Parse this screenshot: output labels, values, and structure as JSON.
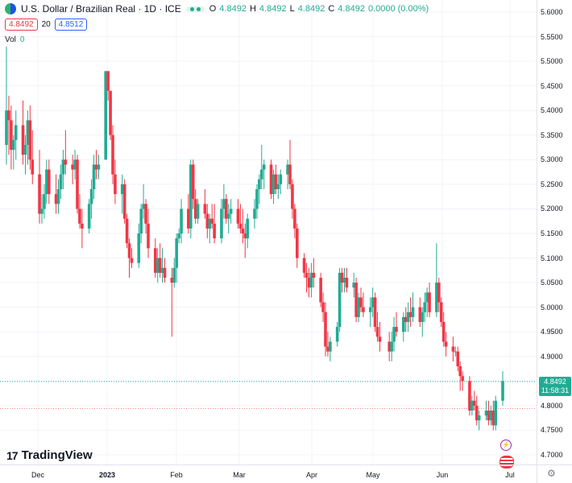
{
  "header": {
    "title": "U.S. Dollar / Brazilian Real · 1D · ICE",
    "ohlc": [
      {
        "key": "O",
        "value": "4.8492"
      },
      {
        "key": "H",
        "value": "4.8492"
      },
      {
        "key": "L",
        "value": "4.8492"
      },
      {
        "key": "C",
        "value": "4.8492"
      },
      {
        "key": "",
        "value": "0.0000 (0.00%)"
      }
    ]
  },
  "quote": {
    "bid": "4.8492",
    "spread": "20",
    "ask": "4.8512"
  },
  "volume": {
    "label": "Vol",
    "value": "0"
  },
  "price_axis": {
    "ticks": [
      "5.6000",
      "5.5500",
      "5.5000",
      "5.4500",
      "5.4000",
      "5.3500",
      "5.3000",
      "5.2500",
      "5.2000",
      "5.1500",
      "5.1000",
      "5.0500",
      "5.0000",
      "4.9500",
      "4.9000",
      "4.8500",
      "4.8000",
      "4.7500",
      "4.7000"
    ],
    "last_price": "4.8492",
    "countdown": "11:58:31"
  },
  "time_axis": {
    "ticks": [
      {
        "label": "Dec",
        "bold": false
      },
      {
        "label": "2023",
        "bold": true
      },
      {
        "label": "Feb",
        "bold": false
      },
      {
        "label": "Mar",
        "bold": false
      },
      {
        "label": "Apr",
        "bold": false
      },
      {
        "label": "May",
        "bold": false
      },
      {
        "label": "Jun",
        "bold": false
      },
      {
        "label": "Jul",
        "bold": false
      }
    ]
  },
  "logo": {
    "text": "TradingView"
  },
  "colors": {
    "up": "#22ab94",
    "down": "#f23645",
    "grid": "#f0f3fa",
    "last_line": "#22ab94",
    "bid_line": "#f23645"
  },
  "chart_data": {
    "type": "candlestick",
    "ylim": [
      4.69,
      5.61
    ],
    "candles": [
      {
        "d": "2022-11-21",
        "o": 5.33,
        "h": 5.53,
        "l": 5.29,
        "c": 5.4
      },
      {
        "d": "2022-11-22",
        "o": 5.4,
        "h": 5.43,
        "l": 5.31,
        "c": 5.38
      },
      {
        "d": "2022-11-23",
        "o": 5.38,
        "h": 5.41,
        "l": 5.28,
        "c": 5.32
      },
      {
        "d": "2022-11-24",
        "o": 5.32,
        "h": 5.35,
        "l": 5.28,
        "c": 5.34
      },
      {
        "d": "2022-11-25",
        "o": 5.34,
        "h": 5.4,
        "l": 5.3,
        "c": 5.37
      },
      {
        "d": "2022-11-28",
        "o": 5.37,
        "h": 5.42,
        "l": 5.29,
        "c": 5.31
      },
      {
        "d": "2022-11-29",
        "o": 5.31,
        "h": 5.35,
        "l": 5.27,
        "c": 5.33
      },
      {
        "d": "2022-11-30",
        "o": 5.33,
        "h": 5.4,
        "l": 5.29,
        "c": 5.38
      },
      {
        "d": "2022-12-01",
        "o": 5.38,
        "h": 5.41,
        "l": 5.28,
        "c": 5.3
      },
      {
        "d": "2022-12-02",
        "o": 5.3,
        "h": 5.36,
        "l": 5.25,
        "c": 5.27
      },
      {
        "d": "2022-12-05",
        "o": 5.27,
        "h": 5.32,
        "l": 5.17,
        "c": 5.19
      },
      {
        "d": "2022-12-06",
        "o": 5.19,
        "h": 5.23,
        "l": 5.17,
        "c": 5.2
      },
      {
        "d": "2022-12-07",
        "o": 5.2,
        "h": 5.25,
        "l": 5.18,
        "c": 5.23
      },
      {
        "d": "2022-12-08",
        "o": 5.23,
        "h": 5.3,
        "l": 5.21,
        "c": 5.28
      },
      {
        "d": "2022-12-09",
        "o": 5.28,
        "h": 5.3,
        "l": 5.21,
        "c": 5.23
      },
      {
        "d": "2022-12-12",
        "o": 5.23,
        "h": 5.27,
        "l": 5.19,
        "c": 5.21
      },
      {
        "d": "2022-12-13",
        "o": 5.21,
        "h": 5.26,
        "l": 5.19,
        "c": 5.24
      },
      {
        "d": "2022-12-14",
        "o": 5.24,
        "h": 5.29,
        "l": 5.22,
        "c": 5.27
      },
      {
        "d": "2022-12-15",
        "o": 5.27,
        "h": 5.32,
        "l": 5.24,
        "c": 5.3
      },
      {
        "d": "2022-12-16",
        "o": 5.3,
        "h": 5.36,
        "l": 5.27,
        "c": 5.29
      },
      {
        "d": "2022-12-19",
        "o": 5.29,
        "h": 5.31,
        "l": 5.25,
        "c": 5.28
      },
      {
        "d": "2022-12-20",
        "o": 5.28,
        "h": 5.32,
        "l": 5.26,
        "c": 5.3
      },
      {
        "d": "2022-12-21",
        "o": 5.3,
        "h": 5.31,
        "l": 5.19,
        "c": 5.2
      },
      {
        "d": "2022-12-22",
        "o": 5.2,
        "h": 5.23,
        "l": 5.16,
        "c": 5.17
      },
      {
        "d": "2022-12-23",
        "o": 5.17,
        "h": 5.2,
        "l": 5.12,
        "c": 5.16
      },
      {
        "d": "2022-12-26",
        "o": 5.16,
        "h": 5.22,
        "l": 5.15,
        "c": 5.21
      },
      {
        "d": "2022-12-27",
        "o": 5.21,
        "h": 5.26,
        "l": 5.18,
        "c": 5.24
      },
      {
        "d": "2022-12-28",
        "o": 5.24,
        "h": 5.31,
        "l": 5.22,
        "c": 5.29
      },
      {
        "d": "2022-12-29",
        "o": 5.29,
        "h": 5.32,
        "l": 5.26,
        "c": 5.28
      },
      {
        "d": "2022-12-30",
        "o": 5.28,
        "h": 5.31,
        "l": 5.26,
        "c": 5.29
      },
      {
        "d": "2023-01-02",
        "o": 5.3,
        "h": 5.48,
        "l": 5.3,
        "c": 5.48
      },
      {
        "d": "2023-01-03",
        "o": 5.48,
        "h": 5.48,
        "l": 5.42,
        "c": 5.44
      },
      {
        "d": "2023-01-04",
        "o": 5.44,
        "h": 5.44,
        "l": 5.34,
        "c": 5.35
      },
      {
        "d": "2023-01-05",
        "o": 5.35,
        "h": 5.37,
        "l": 5.25,
        "c": 5.27
      },
      {
        "d": "2023-01-06",
        "o": 5.27,
        "h": 5.3,
        "l": 5.21,
        "c": 5.23
      },
      {
        "d": "2023-01-09",
        "o": 5.23,
        "h": 5.27,
        "l": 5.19,
        "c": 5.25
      },
      {
        "d": "2023-01-10",
        "o": 5.25,
        "h": 5.26,
        "l": 5.17,
        "c": 5.18
      },
      {
        "d": "2023-01-11",
        "o": 5.18,
        "h": 5.19,
        "l": 5.12,
        "c": 5.13
      },
      {
        "d": "2023-01-12",
        "o": 5.13,
        "h": 5.14,
        "l": 5.06,
        "c": 5.1
      },
      {
        "d": "2023-01-13",
        "o": 5.1,
        "h": 5.12,
        "l": 5.08,
        "c": 5.09
      },
      {
        "d": "2023-01-16",
        "o": 5.09,
        "h": 5.17,
        "l": 5.08,
        "c": 5.15
      },
      {
        "d": "2023-01-17",
        "o": 5.15,
        "h": 5.21,
        "l": 5.13,
        "c": 5.2
      },
      {
        "d": "2023-01-18",
        "o": 5.2,
        "h": 5.25,
        "l": 5.18,
        "c": 5.21
      },
      {
        "d": "2023-01-19",
        "o": 5.21,
        "h": 5.22,
        "l": 5.15,
        "c": 5.17
      },
      {
        "d": "2023-01-20",
        "o": 5.17,
        "h": 5.2,
        "l": 5.1,
        "c": 5.12
      },
      {
        "d": "2023-01-23",
        "o": 5.12,
        "h": 5.14,
        "l": 5.06,
        "c": 5.07
      },
      {
        "d": "2023-01-24",
        "o": 5.07,
        "h": 5.12,
        "l": 5.05,
        "c": 5.1
      },
      {
        "d": "2023-01-25",
        "o": 5.1,
        "h": 5.13,
        "l": 5.06,
        "c": 5.07
      },
      {
        "d": "2023-01-26",
        "o": 5.07,
        "h": 5.12,
        "l": 5.05,
        "c": 5.08
      },
      {
        "d": "2023-01-27",
        "o": 5.08,
        "h": 5.1,
        "l": 5.05,
        "c": 5.06
      },
      {
        "d": "2023-01-30",
        "o": 5.06,
        "h": 5.08,
        "l": 4.94,
        "c": 5.05
      },
      {
        "d": "2023-01-31",
        "o": 5.05,
        "h": 5.1,
        "l": 5.04,
        "c": 5.08
      },
      {
        "d": "2023-02-01",
        "o": 5.08,
        "h": 5.15,
        "l": 5.05,
        "c": 5.14
      },
      {
        "d": "2023-02-02",
        "o": 5.14,
        "h": 5.16,
        "l": 5.13,
        "c": 5.15
      },
      {
        "d": "2023-02-03",
        "o": 5.15,
        "h": 5.22,
        "l": 5.13,
        "c": 5.2
      },
      {
        "d": "2023-02-06",
        "o": 5.2,
        "h": 5.23,
        "l": 5.15,
        "c": 5.16
      },
      {
        "d": "2023-02-07",
        "o": 5.16,
        "h": 5.3,
        "l": 5.14,
        "c": 5.29
      },
      {
        "d": "2023-02-08",
        "o": 5.29,
        "h": 5.3,
        "l": 5.2,
        "c": 5.22
      },
      {
        "d": "2023-02-09",
        "o": 5.22,
        "h": 5.24,
        "l": 5.17,
        "c": 5.18
      },
      {
        "d": "2023-02-10",
        "o": 5.18,
        "h": 5.22,
        "l": 5.17,
        "c": 5.21
      },
      {
        "d": "2023-02-13",
        "o": 5.21,
        "h": 5.24,
        "l": 5.18,
        "c": 5.19
      },
      {
        "d": "2023-02-14",
        "o": 5.19,
        "h": 5.21,
        "l": 5.14,
        "c": 5.16
      },
      {
        "d": "2023-02-15",
        "o": 5.16,
        "h": 5.19,
        "l": 5.13,
        "c": 5.18
      },
      {
        "d": "2023-02-16",
        "o": 5.18,
        "h": 5.21,
        "l": 5.16,
        "c": 5.17
      },
      {
        "d": "2023-02-17",
        "o": 5.17,
        "h": 5.21,
        "l": 5.13,
        "c": 5.14
      },
      {
        "d": "2023-02-20",
        "o": 5.14,
        "h": 5.22,
        "l": 5.13,
        "c": 5.2
      },
      {
        "d": "2023-02-21",
        "o": 5.2,
        "h": 5.25,
        "l": 5.18,
        "c": 5.22
      },
      {
        "d": "2023-02-22",
        "o": 5.22,
        "h": 5.23,
        "l": 5.17,
        "c": 5.18
      },
      {
        "d": "2023-02-23",
        "o": 5.18,
        "h": 5.21,
        "l": 5.15,
        "c": 5.19
      },
      {
        "d": "2023-02-24",
        "o": 5.19,
        "h": 5.22,
        "l": 5.17,
        "c": 5.2
      },
      {
        "d": "2023-02-27",
        "o": 5.2,
        "h": 5.22,
        "l": 5.16,
        "c": 5.17
      },
      {
        "d": "2023-02-28",
        "o": 5.17,
        "h": 5.21,
        "l": 5.15,
        "c": 5.16
      },
      {
        "d": "2023-03-01",
        "o": 5.16,
        "h": 5.2,
        "l": 5.13,
        "c": 5.15
      },
      {
        "d": "2023-03-02",
        "o": 5.15,
        "h": 5.17,
        "l": 5.1,
        "c": 5.14
      },
      {
        "d": "2023-03-03",
        "o": 5.14,
        "h": 5.19,
        "l": 5.12,
        "c": 5.18
      },
      {
        "d": "2023-03-06",
        "o": 5.18,
        "h": 5.22,
        "l": 5.16,
        "c": 5.2
      },
      {
        "d": "2023-03-07",
        "o": 5.2,
        "h": 5.25,
        "l": 5.18,
        "c": 5.24
      },
      {
        "d": "2023-03-08",
        "o": 5.24,
        "h": 5.27,
        "l": 5.21,
        "c": 5.26
      },
      {
        "d": "2023-03-09",
        "o": 5.26,
        "h": 5.33,
        "l": 5.24,
        "c": 5.28
      },
      {
        "d": "2023-03-10",
        "o": 5.28,
        "h": 5.3,
        "l": 5.24,
        "c": 5.29
      },
      {
        "d": "2023-03-13",
        "o": 5.29,
        "h": 5.3,
        "l": 5.22,
        "c": 5.23
      },
      {
        "d": "2023-03-14",
        "o": 5.23,
        "h": 5.28,
        "l": 5.21,
        "c": 5.27
      },
      {
        "d": "2023-03-15",
        "o": 5.27,
        "h": 5.29,
        "l": 5.23,
        "c": 5.24
      },
      {
        "d": "2023-03-16",
        "o": 5.24,
        "h": 5.27,
        "l": 5.22,
        "c": 5.25
      },
      {
        "d": "2023-03-17",
        "o": 5.25,
        "h": 5.28,
        "l": 5.23,
        "c": 5.27
      },
      {
        "d": "2023-03-20",
        "o": 5.27,
        "h": 5.3,
        "l": 5.24,
        "c": 5.29
      },
      {
        "d": "2023-03-21",
        "o": 5.29,
        "h": 5.34,
        "l": 5.24,
        "c": 5.25
      },
      {
        "d": "2023-03-22",
        "o": 5.25,
        "h": 5.26,
        "l": 5.18,
        "c": 5.2
      },
      {
        "d": "2023-03-23",
        "o": 5.2,
        "h": 5.21,
        "l": 5.14,
        "c": 5.16
      },
      {
        "d": "2023-03-24",
        "o": 5.16,
        "h": 5.17,
        "l": 5.08,
        "c": 5.1
      },
      {
        "d": "2023-03-27",
        "o": 5.1,
        "h": 5.11,
        "l": 5.06,
        "c": 5.07
      },
      {
        "d": "2023-03-28",
        "o": 5.07,
        "h": 5.09,
        "l": 5.03,
        "c": 5.06
      },
      {
        "d": "2023-03-29",
        "o": 5.06,
        "h": 5.08,
        "l": 5.02,
        "c": 5.04
      },
      {
        "d": "2023-03-30",
        "o": 5.04,
        "h": 5.09,
        "l": 5.02,
        "c": 5.07
      },
      {
        "d": "2023-03-31",
        "o": 5.07,
        "h": 5.1,
        "l": 5.04,
        "c": 5.06
      },
      {
        "d": "2023-04-03",
        "o": 5.06,
        "h": 5.07,
        "l": 5.0,
        "c": 5.01
      },
      {
        "d": "2023-04-04",
        "o": 5.01,
        "h": 5.03,
        "l": 4.97,
        "c": 4.99
      },
      {
        "d": "2023-04-05",
        "o": 4.99,
        "h": 5.01,
        "l": 4.9,
        "c": 4.92
      },
      {
        "d": "2023-04-06",
        "o": 4.92,
        "h": 4.95,
        "l": 4.9,
        "c": 4.91
      },
      {
        "d": "2023-04-07",
        "o": 4.91,
        "h": 4.94,
        "l": 4.89,
        "c": 4.93
      },
      {
        "d": "2023-04-10",
        "o": 4.93,
        "h": 4.97,
        "l": 4.92,
        "c": 4.96
      },
      {
        "d": "2023-04-11",
        "o": 4.96,
        "h": 5.08,
        "l": 4.95,
        "c": 5.07
      },
      {
        "d": "2023-04-12",
        "o": 5.07,
        "h": 5.08,
        "l": 5.03,
        "c": 5.05
      },
      {
        "d": "2023-04-13",
        "o": 5.05,
        "h": 5.08,
        "l": 5.03,
        "c": 5.06
      },
      {
        "d": "2023-04-14",
        "o": 5.06,
        "h": 5.08,
        "l": 5.03,
        "c": 5.04
      },
      {
        "d": "2023-04-17",
        "o": 5.04,
        "h": 5.07,
        "l": 5.02,
        "c": 5.05
      },
      {
        "d": "2023-04-18",
        "o": 5.05,
        "h": 5.06,
        "l": 4.97,
        "c": 4.98
      },
      {
        "d": "2023-04-19",
        "o": 4.98,
        "h": 5.03,
        "l": 4.97,
        "c": 5.02
      },
      {
        "d": "2023-04-20",
        "o": 5.02,
        "h": 5.04,
        "l": 4.99,
        "c": 5.0
      },
      {
        "d": "2023-04-21",
        "o": 5.0,
        "h": 5.03,
        "l": 4.98,
        "c": 4.99
      },
      {
        "d": "2023-04-24",
        "o": 4.99,
        "h": 5.02,
        "l": 4.96,
        "c": 5.0
      },
      {
        "d": "2023-04-25",
        "o": 5.0,
        "h": 5.04,
        "l": 4.98,
        "c": 5.02
      },
      {
        "d": "2023-04-26",
        "o": 5.02,
        "h": 5.03,
        "l": 4.95,
        "c": 4.96
      },
      {
        "d": "2023-04-27",
        "o": 4.96,
        "h": 4.99,
        "l": 4.93,
        "c": 4.94
      },
      {
        "d": "2023-04-28",
        "o": 4.94,
        "h": 4.97,
        "l": 4.91,
        "c": 4.93
      },
      {
        "d": "2023-05-02",
        "o": 4.93,
        "h": 4.95,
        "l": 4.89,
        "c": 4.91
      },
      {
        "d": "2023-05-03",
        "o": 4.91,
        "h": 4.95,
        "l": 4.89,
        "c": 4.93
      },
      {
        "d": "2023-05-04",
        "o": 4.93,
        "h": 4.98,
        "l": 4.91,
        "c": 4.96
      },
      {
        "d": "2023-05-05",
        "o": 4.96,
        "h": 4.99,
        "l": 4.94,
        "c": 4.95
      },
      {
        "d": "2023-05-08",
        "o": 4.95,
        "h": 4.99,
        "l": 4.93,
        "c": 4.98
      },
      {
        "d": "2023-05-09",
        "o": 4.98,
        "h": 5.0,
        "l": 4.95,
        "c": 4.97
      },
      {
        "d": "2023-05-10",
        "o": 4.97,
        "h": 5.01,
        "l": 4.95,
        "c": 4.99
      },
      {
        "d": "2023-05-11",
        "o": 4.99,
        "h": 5.02,
        "l": 4.96,
        "c": 4.98
      },
      {
        "d": "2023-05-12",
        "o": 4.98,
        "h": 5.03,
        "l": 4.97,
        "c": 5.0
      },
      {
        "d": "2023-05-15",
        "o": 5.0,
        "h": 5.02,
        "l": 4.96,
        "c": 4.97
      },
      {
        "d": "2023-05-16",
        "o": 4.97,
        "h": 5.0,
        "l": 4.94,
        "c": 4.99
      },
      {
        "d": "2023-05-17",
        "o": 4.99,
        "h": 5.03,
        "l": 4.97,
        "c": 5.01
      },
      {
        "d": "2023-05-18",
        "o": 5.01,
        "h": 5.04,
        "l": 4.98,
        "c": 5.03
      },
      {
        "d": "2023-05-19",
        "o": 5.03,
        "h": 5.05,
        "l": 4.98,
        "c": 4.99
      },
      {
        "d": "2023-05-22",
        "o": 4.99,
        "h": 5.13,
        "l": 4.98,
        "c": 5.05
      },
      {
        "d": "2023-05-23",
        "o": 5.05,
        "h": 5.06,
        "l": 4.99,
        "c": 5.01
      },
      {
        "d": "2023-05-24",
        "o": 5.01,
        "h": 5.02,
        "l": 4.96,
        "c": 4.97
      },
      {
        "d": "2023-05-25",
        "o": 4.97,
        "h": 4.99,
        "l": 4.92,
        "c": 4.93
      },
      {
        "d": "2023-05-26",
        "o": 4.93,
        "h": 4.95,
        "l": 4.9,
        "c": 4.92
      },
      {
        "d": "2023-05-29",
        "o": 4.92,
        "h": 4.94,
        "l": 4.89,
        "c": 4.91
      },
      {
        "d": "2023-05-30",
        "o": 4.91,
        "h": 4.92,
        "l": 4.9,
        "c": 4.91
      },
      {
        "d": "2023-05-31",
        "o": 4.91,
        "h": 4.92,
        "l": 4.87,
        "c": 4.88
      },
      {
        "d": "2023-06-01",
        "o": 4.88,
        "h": 4.89,
        "l": 4.83,
        "c": 4.86
      },
      {
        "d": "2023-06-02",
        "o": 4.86,
        "h": 4.87,
        "l": 4.83,
        "c": 4.85
      },
      {
        "d": "2023-06-05",
        "o": 4.85,
        "h": 4.86,
        "l": 4.78,
        "c": 4.79
      },
      {
        "d": "2023-06-06",
        "o": 4.79,
        "h": 4.82,
        "l": 4.78,
        "c": 4.81
      },
      {
        "d": "2023-06-07",
        "o": 4.81,
        "h": 4.83,
        "l": 4.79,
        "c": 4.8
      },
      {
        "d": "2023-06-08",
        "o": 4.8,
        "h": 4.82,
        "l": 4.76,
        "c": 4.77
      },
      {
        "d": "2023-06-09",
        "o": 4.77,
        "h": 4.79,
        "l": 4.75,
        "c": 4.78
      },
      {
        "d": "2023-06-12",
        "o": 4.78,
        "h": 4.81,
        "l": 4.77,
        "c": 4.79
      },
      {
        "d": "2023-06-13",
        "o": 4.79,
        "h": 4.81,
        "l": 4.76,
        "c": 4.77
      },
      {
        "d": "2023-06-14",
        "o": 4.77,
        "h": 4.8,
        "l": 4.76,
        "c": 4.79
      },
      {
        "d": "2023-06-15",
        "o": 4.79,
        "h": 4.81,
        "l": 4.75,
        "c": 4.76
      },
      {
        "d": "2023-06-16",
        "o": 4.76,
        "h": 4.82,
        "l": 4.75,
        "c": 4.81
      },
      {
        "d": "2023-06-19",
        "o": 4.81,
        "h": 4.87,
        "l": 4.8,
        "c": 4.85
      }
    ]
  }
}
